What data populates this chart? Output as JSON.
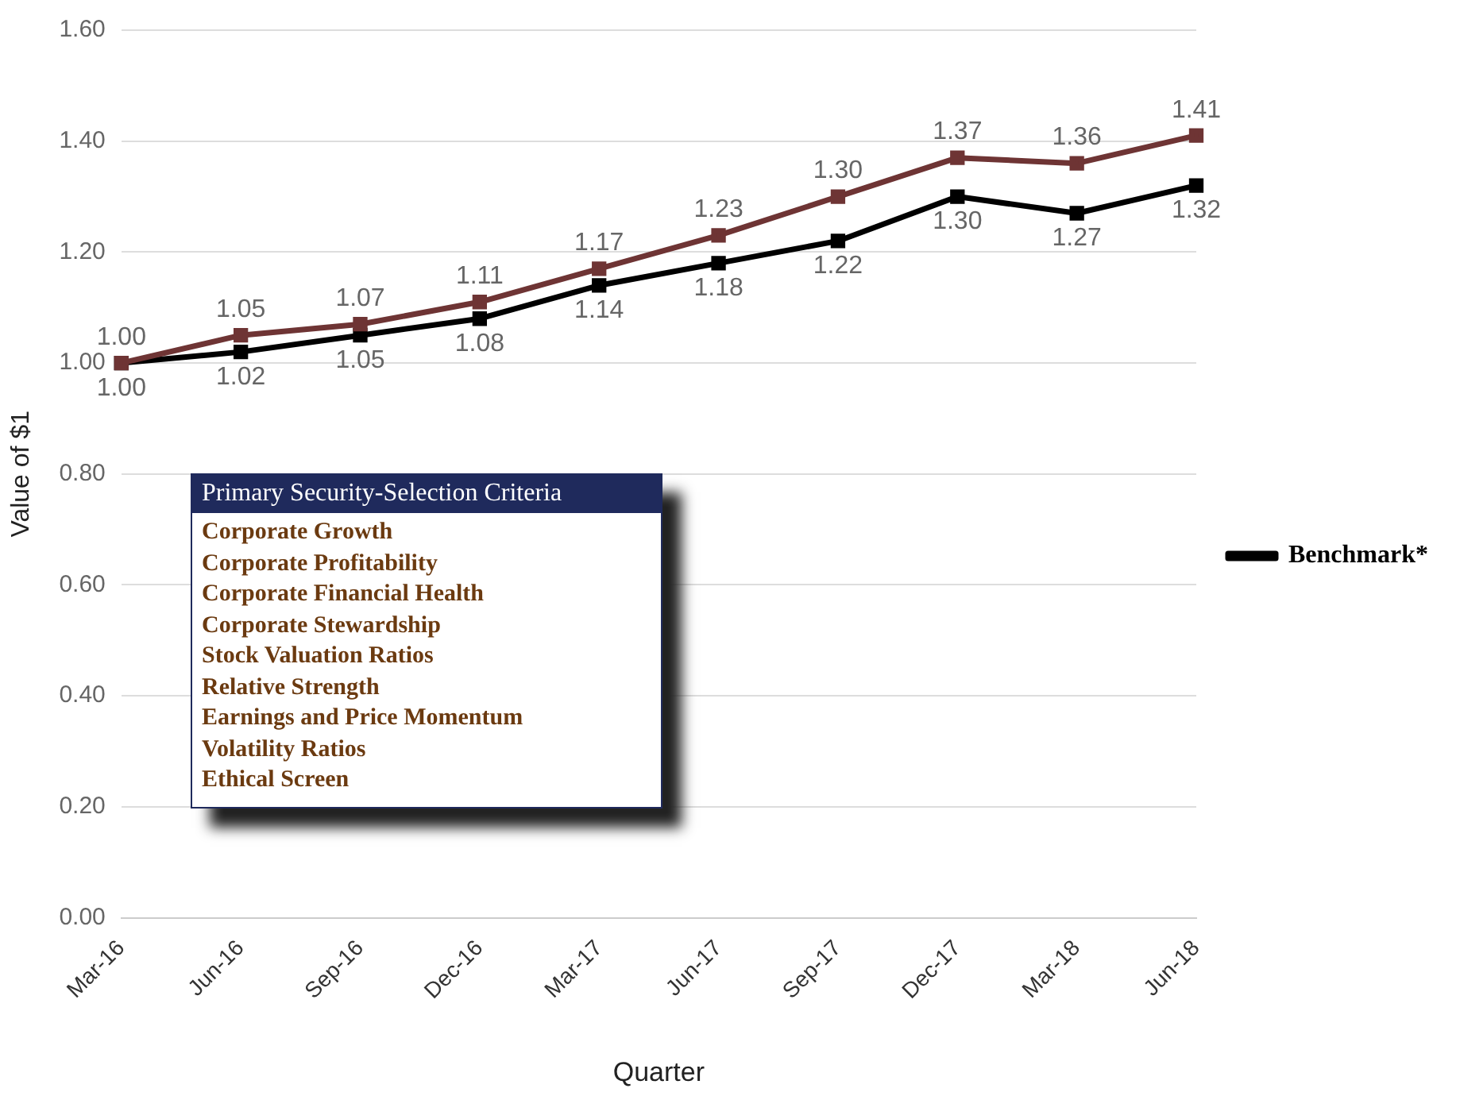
{
  "chart_data": {
    "type": "line",
    "xlabel": "Quarter",
    "ylabel": "Value of $1",
    "categories": [
      "Mar-16",
      "Jun-16",
      "Sep-16",
      "Dec-16",
      "Mar-17",
      "Jun-17",
      "Sep-17",
      "Dec-17",
      "Mar-18",
      "Jun-18"
    ],
    "series": [
      {
        "color": "#6e3434",
        "values": [
          1.0,
          1.05,
          1.07,
          1.11,
          1.17,
          1.23,
          1.3,
          1.37,
          1.36,
          1.41
        ],
        "value_labels": [
          "1.00",
          "1.05",
          "1.07",
          "1.11",
          "1.17",
          "1.23",
          "1.30",
          "1.37",
          "1.36",
          "1.41"
        ]
      },
      {
        "name": "Benchmark*",
        "color": "#000000",
        "values": [
          1.0,
          1.02,
          1.05,
          1.08,
          1.14,
          1.18,
          1.22,
          1.3,
          1.27,
          1.32
        ],
        "value_labels": [
          "1.00",
          "1.02",
          "1.05",
          "1.08",
          "1.14",
          "1.18",
          "1.22",
          "1.30",
          "1.27",
          "1.32"
        ]
      }
    ],
    "ylim": [
      0,
      1.6
    ],
    "yticks": [
      {
        "value": 0,
        "label": "0.00"
      },
      {
        "value": 0.2,
        "label": "0.20"
      },
      {
        "value": 0.4,
        "label": "0.40"
      },
      {
        "value": 0.6,
        "label": "0.60"
      },
      {
        "value": 0.8,
        "label": "0.80"
      },
      {
        "value": 1.0,
        "label": "1.00"
      },
      {
        "value": 1.2,
        "label": "1.20"
      },
      {
        "value": 1.4,
        "label": "1.40"
      },
      {
        "value": 1.6,
        "label": "1.60"
      }
    ],
    "grid": "y",
    "legend": "right",
    "marker": "square",
    "line_style": "solid",
    "annotations": [
      "Primary Security-Selection Criteria",
      "Corporate Growth",
      "Corporate Profitability",
      "Corporate Financial Health",
      "Corporate Stewardship",
      "Stock Valuation Ratios",
      "Relative Strength",
      "Earnings and Price Momentum",
      "Volatility Ratios",
      "Ethical Screen"
    ]
  }
}
